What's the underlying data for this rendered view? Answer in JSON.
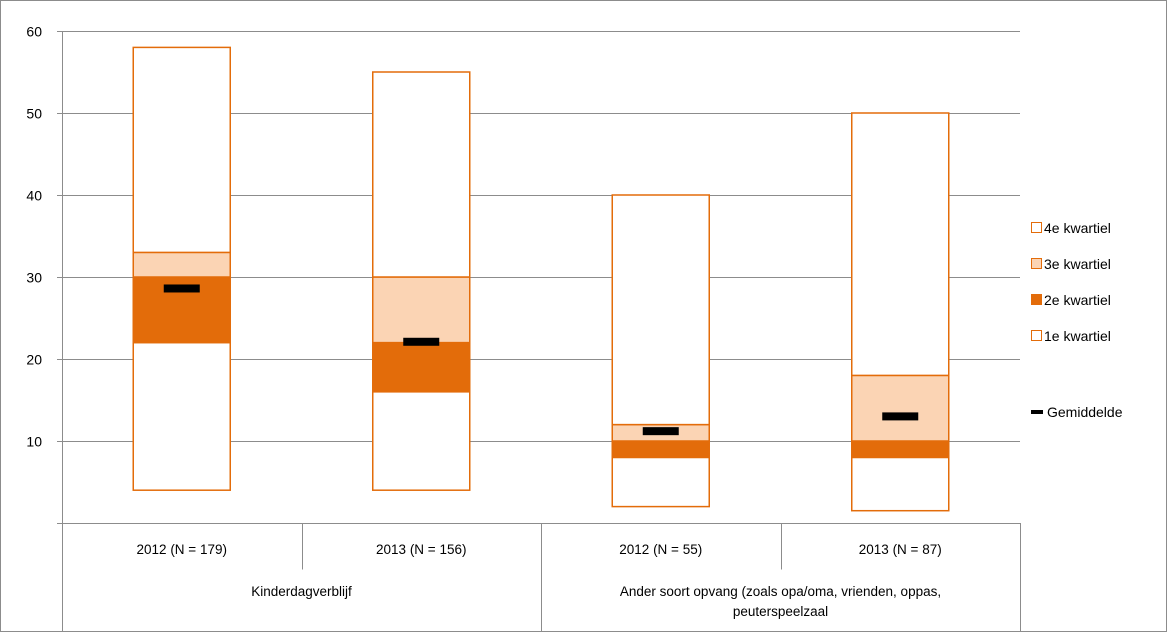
{
  "chart_data": {
    "type": "box",
    "title": "",
    "xlabel": "",
    "ylabel": "",
    "ylim": [
      0,
      60
    ],
    "yticks": [
      10,
      20,
      30,
      40,
      50,
      60
    ],
    "grid": true,
    "legend_position": "right",
    "colors": {
      "q1": "#ffffff",
      "q2": "#e36c0a",
      "q3": "#fbd4b4",
      "q4": "#ffffff",
      "outline": "#e36c0a",
      "mean": "#000000"
    },
    "groups": [
      {
        "label": "Kinderdagverblijf",
        "lines": [
          "Kinderdagverblijf"
        ]
      },
      {
        "label": "Ander soort opvang (zoals opa/oma, vrienden, oppas, peuterspeelzaal",
        "lines": [
          "Ander soort opvang (zoals opa/oma,  vrienden,  oppas,",
          "peuterspeelzaal"
        ]
      }
    ],
    "categories": [
      "2012 (N = 179)",
      "2013 (N = 156)",
      "2012 (N = 55)",
      "2013 (N = 87)"
    ],
    "category_group": [
      0,
      0,
      1,
      1
    ],
    "series": [
      {
        "name": "4e kwartiel"
      },
      {
        "name": "3e kwartiel"
      },
      {
        "name": "2e kwartiel"
      },
      {
        "name": "1e kwartiel"
      },
      {
        "name": "Gemiddelde"
      }
    ],
    "boxes": [
      {
        "min": 4,
        "q1": 22,
        "median": 30,
        "q3": 33,
        "max": 58,
        "mean": 28.6
      },
      {
        "min": 4,
        "q1": 16,
        "median": 22,
        "q3": 30,
        "max": 55,
        "mean": 22.1
      },
      {
        "min": 2,
        "q1": 8,
        "median": 10,
        "q3": 12,
        "max": 40,
        "mean": 11.2
      },
      {
        "min": 1.5,
        "q1": 8,
        "median": 10,
        "q3": 18,
        "max": 50,
        "mean": 13
      }
    ]
  }
}
